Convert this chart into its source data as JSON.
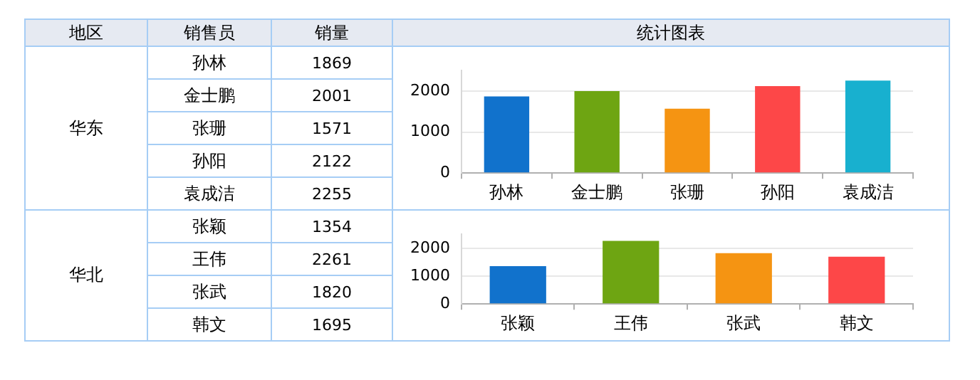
{
  "chart_data": [
    {
      "type": "other",
      "annotations": [
        "地区",
        "销售员",
        "销量",
        "统计图表",
        "华东",
        "孙林",
        "1869",
        "金士鹏",
        "2001",
        "张珊",
        "1571",
        "孙阳",
        "2122",
        "袁成洁",
        "2255",
        "华北",
        "张颖",
        "1354",
        "王伟",
        "2261",
        "张武",
        "1820",
        "韩文",
        "1695"
      ]
    },
    {
      "type": "bar",
      "categories": [
        "孙林",
        "金士鹏",
        "张珊",
        "孙阳",
        "袁成洁"
      ],
      "values": [
        1869,
        2001,
        1571,
        2122,
        2255
      ],
      "colors": [
        "#1172cc",
        "#6ea512",
        "#f59412",
        "#fd4748",
        "#18b0cf"
      ],
      "ylim": [
        0,
        2500
      ],
      "yticks": [
        0,
        1000,
        2000
      ],
      "grid": "y"
    },
    {
      "type": "bar",
      "categories": [
        "张颖",
        "王伟",
        "张武",
        "韩文"
      ],
      "values": [
        1354,
        2261,
        1820,
        1695
      ],
      "colors": [
        "#1172cc",
        "#6ea512",
        "#f59412",
        "#fd4748"
      ],
      "ylim": [
        0,
        2500
      ],
      "yticks": [
        0,
        1000,
        2000
      ],
      "grid": "y"
    }
  ]
}
